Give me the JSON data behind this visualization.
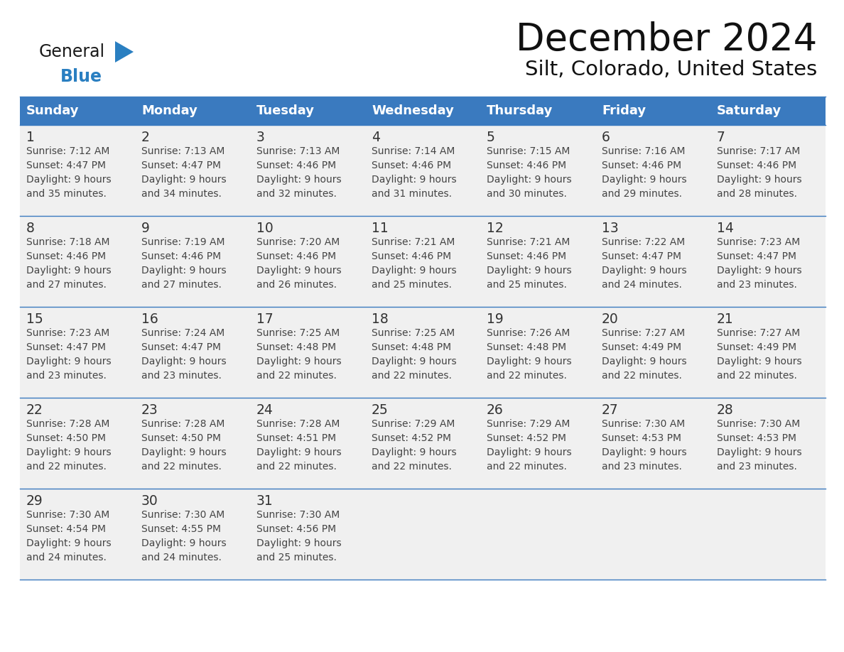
{
  "title": "December 2024",
  "subtitle": "Silt, Colorado, United States",
  "days_of_week": [
    "Sunday",
    "Monday",
    "Tuesday",
    "Wednesday",
    "Thursday",
    "Friday",
    "Saturday"
  ],
  "header_bg": "#3a7abf",
  "header_text": "#ffffff",
  "row_bg": "#f0f0f0",
  "day_num_color": "#333333",
  "text_color": "#444444",
  "line_color": "#3a7abf",
  "logo_general_color": "#1a1a1a",
  "logo_blue_color": "#2a7fc1",
  "title_color": "#111111",
  "calendar_data": [
    [
      {
        "day": 1,
        "sunrise": "7:12 AM",
        "sunset": "4:47 PM",
        "daylight_h": "9 hours",
        "daylight_m": "and 35 minutes."
      },
      {
        "day": 2,
        "sunrise": "7:13 AM",
        "sunset": "4:47 PM",
        "daylight_h": "9 hours",
        "daylight_m": "and 34 minutes."
      },
      {
        "day": 3,
        "sunrise": "7:13 AM",
        "sunset": "4:46 PM",
        "daylight_h": "9 hours",
        "daylight_m": "and 32 minutes."
      },
      {
        "day": 4,
        "sunrise": "7:14 AM",
        "sunset": "4:46 PM",
        "daylight_h": "9 hours",
        "daylight_m": "and 31 minutes."
      },
      {
        "day": 5,
        "sunrise": "7:15 AM",
        "sunset": "4:46 PM",
        "daylight_h": "9 hours",
        "daylight_m": "and 30 minutes."
      },
      {
        "day": 6,
        "sunrise": "7:16 AM",
        "sunset": "4:46 PM",
        "daylight_h": "9 hours",
        "daylight_m": "and 29 minutes."
      },
      {
        "day": 7,
        "sunrise": "7:17 AM",
        "sunset": "4:46 PM",
        "daylight_h": "9 hours",
        "daylight_m": "and 28 minutes."
      }
    ],
    [
      {
        "day": 8,
        "sunrise": "7:18 AM",
        "sunset": "4:46 PM",
        "daylight_h": "9 hours",
        "daylight_m": "and 27 minutes."
      },
      {
        "day": 9,
        "sunrise": "7:19 AM",
        "sunset": "4:46 PM",
        "daylight_h": "9 hours",
        "daylight_m": "and 27 minutes."
      },
      {
        "day": 10,
        "sunrise": "7:20 AM",
        "sunset": "4:46 PM",
        "daylight_h": "9 hours",
        "daylight_m": "and 26 minutes."
      },
      {
        "day": 11,
        "sunrise": "7:21 AM",
        "sunset": "4:46 PM",
        "daylight_h": "9 hours",
        "daylight_m": "and 25 minutes."
      },
      {
        "day": 12,
        "sunrise": "7:21 AM",
        "sunset": "4:46 PM",
        "daylight_h": "9 hours",
        "daylight_m": "and 25 minutes."
      },
      {
        "day": 13,
        "sunrise": "7:22 AM",
        "sunset": "4:47 PM",
        "daylight_h": "9 hours",
        "daylight_m": "and 24 minutes."
      },
      {
        "day": 14,
        "sunrise": "7:23 AM",
        "sunset": "4:47 PM",
        "daylight_h": "9 hours",
        "daylight_m": "and 23 minutes."
      }
    ],
    [
      {
        "day": 15,
        "sunrise": "7:23 AM",
        "sunset": "4:47 PM",
        "daylight_h": "9 hours",
        "daylight_m": "and 23 minutes."
      },
      {
        "day": 16,
        "sunrise": "7:24 AM",
        "sunset": "4:47 PM",
        "daylight_h": "9 hours",
        "daylight_m": "and 23 minutes."
      },
      {
        "day": 17,
        "sunrise": "7:25 AM",
        "sunset": "4:48 PM",
        "daylight_h": "9 hours",
        "daylight_m": "and 22 minutes."
      },
      {
        "day": 18,
        "sunrise": "7:25 AM",
        "sunset": "4:48 PM",
        "daylight_h": "9 hours",
        "daylight_m": "and 22 minutes."
      },
      {
        "day": 19,
        "sunrise": "7:26 AM",
        "sunset": "4:48 PM",
        "daylight_h": "9 hours",
        "daylight_m": "and 22 minutes."
      },
      {
        "day": 20,
        "sunrise": "7:27 AM",
        "sunset": "4:49 PM",
        "daylight_h": "9 hours",
        "daylight_m": "and 22 minutes."
      },
      {
        "day": 21,
        "sunrise": "7:27 AM",
        "sunset": "4:49 PM",
        "daylight_h": "9 hours",
        "daylight_m": "and 22 minutes."
      }
    ],
    [
      {
        "day": 22,
        "sunrise": "7:28 AM",
        "sunset": "4:50 PM",
        "daylight_h": "9 hours",
        "daylight_m": "and 22 minutes."
      },
      {
        "day": 23,
        "sunrise": "7:28 AM",
        "sunset": "4:50 PM",
        "daylight_h": "9 hours",
        "daylight_m": "and 22 minutes."
      },
      {
        "day": 24,
        "sunrise": "7:28 AM",
        "sunset": "4:51 PM",
        "daylight_h": "9 hours",
        "daylight_m": "and 22 minutes."
      },
      {
        "day": 25,
        "sunrise": "7:29 AM",
        "sunset": "4:52 PM",
        "daylight_h": "9 hours",
        "daylight_m": "and 22 minutes."
      },
      {
        "day": 26,
        "sunrise": "7:29 AM",
        "sunset": "4:52 PM",
        "daylight_h": "9 hours",
        "daylight_m": "and 22 minutes."
      },
      {
        "day": 27,
        "sunrise": "7:30 AM",
        "sunset": "4:53 PM",
        "daylight_h": "9 hours",
        "daylight_m": "and 23 minutes."
      },
      {
        "day": 28,
        "sunrise": "7:30 AM",
        "sunset": "4:53 PM",
        "daylight_h": "9 hours",
        "daylight_m": "and 23 minutes."
      }
    ],
    [
      {
        "day": 29,
        "sunrise": "7:30 AM",
        "sunset": "4:54 PM",
        "daylight_h": "9 hours",
        "daylight_m": "and 24 minutes."
      },
      {
        "day": 30,
        "sunrise": "7:30 AM",
        "sunset": "4:55 PM",
        "daylight_h": "9 hours",
        "daylight_m": "and 24 minutes."
      },
      {
        "day": 31,
        "sunrise": "7:30 AM",
        "sunset": "4:56 PM",
        "daylight_h": "9 hours",
        "daylight_m": "and 25 minutes."
      },
      null,
      null,
      null,
      null
    ]
  ]
}
